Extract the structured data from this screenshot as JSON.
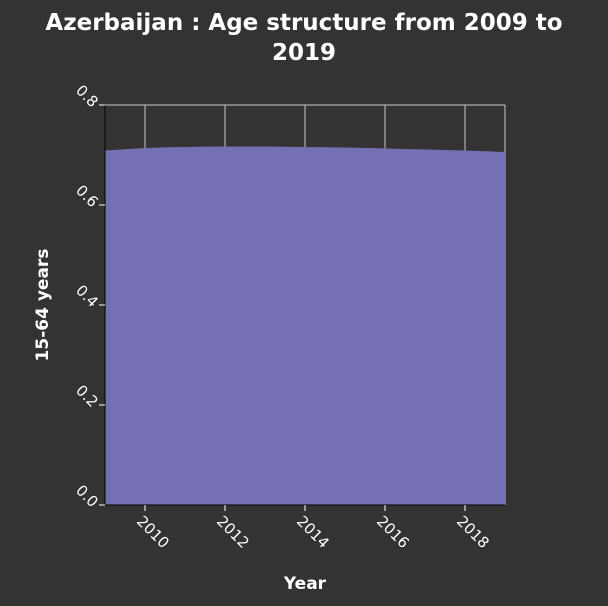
{
  "chart_data": {
    "type": "area",
    "title_lines": [
      "Azerbaijan : Age structure from 2009 to",
      "2019"
    ],
    "xlabel": "Year",
    "ylabel": "15-64 years",
    "x": [
      2009,
      2010,
      2011,
      2012,
      2013,
      2014,
      2015,
      2016,
      2017,
      2018,
      2019
    ],
    "values": [
      0.709,
      0.714,
      0.716,
      0.717,
      0.717,
      0.716,
      0.715,
      0.713,
      0.711,
      0.709,
      0.706
    ],
    "xticks": [
      2010,
      2012,
      2014,
      2016,
      2018
    ],
    "xtick_labels": [
      "2010",
      "2012",
      "2014",
      "2016",
      "2018"
    ],
    "yticks": [
      0,
      0.2,
      0.4,
      0.6,
      0.8
    ],
    "ytick_labels": [
      "0.0",
      "0.2",
      "0.4",
      "0.6",
      "0.8"
    ],
    "xlim": [
      2009,
      2019
    ],
    "ylim": [
      0,
      0.8
    ],
    "grid": true,
    "colors": {
      "background": "#333333",
      "area": "#7570b3",
      "grid": "#c8c8c8",
      "text": "#ffffff"
    }
  }
}
